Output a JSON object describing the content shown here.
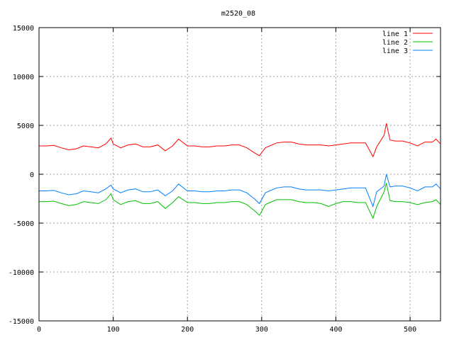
{
  "chart_data": {
    "type": "line",
    "title": "m2520_08",
    "xlabel": "",
    "ylabel": "",
    "xlim": [
      0,
      541
    ],
    "ylim": [
      -15000,
      15000
    ],
    "xticks": [
      0,
      100,
      200,
      300,
      400,
      500
    ],
    "yticks": [
      -15000,
      -10000,
      -5000,
      0,
      5000,
      10000,
      15000
    ],
    "grid": true,
    "legend_position": "top-right",
    "x": [
      0,
      10,
      20,
      30,
      40,
      50,
      60,
      70,
      80,
      90,
      97,
      100,
      110,
      120,
      130,
      140,
      150,
      160,
      170,
      180,
      188,
      200,
      210,
      220,
      230,
      240,
      250,
      260,
      270,
      280,
      290,
      297,
      305,
      320,
      330,
      340,
      350,
      360,
      370,
      380,
      390,
      400,
      410,
      420,
      430,
      440,
      450,
      455,
      465,
      468,
      473,
      480,
      490,
      500,
      510,
      520,
      530,
      535,
      541
    ],
    "series": [
      {
        "name": "line 1",
        "color": "#ff0000",
        "values": [
          2900,
          2900,
          2950,
          2700,
          2500,
          2600,
          2900,
          2800,
          2700,
          3100,
          3700,
          3100,
          2700,
          3000,
          3100,
          2800,
          2800,
          3000,
          2400,
          2900,
          3600,
          2900,
          2900,
          2800,
          2800,
          2900,
          2900,
          3000,
          3000,
          2700,
          2200,
          1900,
          2700,
          3200,
          3300,
          3300,
          3100,
          3000,
          3000,
          3000,
          2900,
          3000,
          3100,
          3200,
          3200,
          3200,
          1800,
          2800,
          4000,
          5200,
          3500,
          3400,
          3400,
          3200,
          2900,
          3300,
          3300,
          3600,
          3100
        ]
      },
      {
        "name": "line 2",
        "color": "#00c000",
        "values": [
          -2800,
          -2800,
          -2750,
          -3000,
          -3200,
          -3100,
          -2800,
          -2900,
          -3000,
          -2600,
          -2000,
          -2600,
          -3100,
          -2800,
          -2700,
          -3000,
          -3000,
          -2800,
          -3500,
          -2900,
          -2300,
          -2900,
          -2900,
          -3000,
          -3000,
          -2900,
          -2900,
          -2800,
          -2800,
          -3100,
          -3700,
          -4200,
          -3100,
          -2600,
          -2600,
          -2600,
          -2800,
          -2900,
          -2900,
          -3000,
          -3300,
          -3000,
          -2800,
          -2800,
          -2900,
          -2900,
          -4500,
          -3300,
          -1800,
          -900,
          -2700,
          -2800,
          -2800,
          -2900,
          -3100,
          -2900,
          -2800,
          -2600,
          -3100
        ]
      },
      {
        "name": "line 3",
        "color": "#0080ff",
        "values": [
          -1700,
          -1700,
          -1650,
          -1900,
          -2100,
          -2000,
          -1700,
          -1800,
          -1900,
          -1500,
          -1100,
          -1500,
          -1900,
          -1600,
          -1500,
          -1800,
          -1800,
          -1600,
          -2200,
          -1700,
          -1000,
          -1700,
          -1700,
          -1800,
          -1800,
          -1700,
          -1700,
          -1600,
          -1600,
          -1900,
          -2500,
          -3000,
          -1900,
          -1400,
          -1300,
          -1300,
          -1500,
          -1600,
          -1600,
          -1600,
          -1700,
          -1600,
          -1500,
          -1400,
          -1400,
          -1400,
          -3300,
          -1800,
          -1200,
          0,
          -1300,
          -1200,
          -1200,
          -1400,
          -1700,
          -1300,
          -1300,
          -1000,
          -1500
        ]
      }
    ]
  }
}
